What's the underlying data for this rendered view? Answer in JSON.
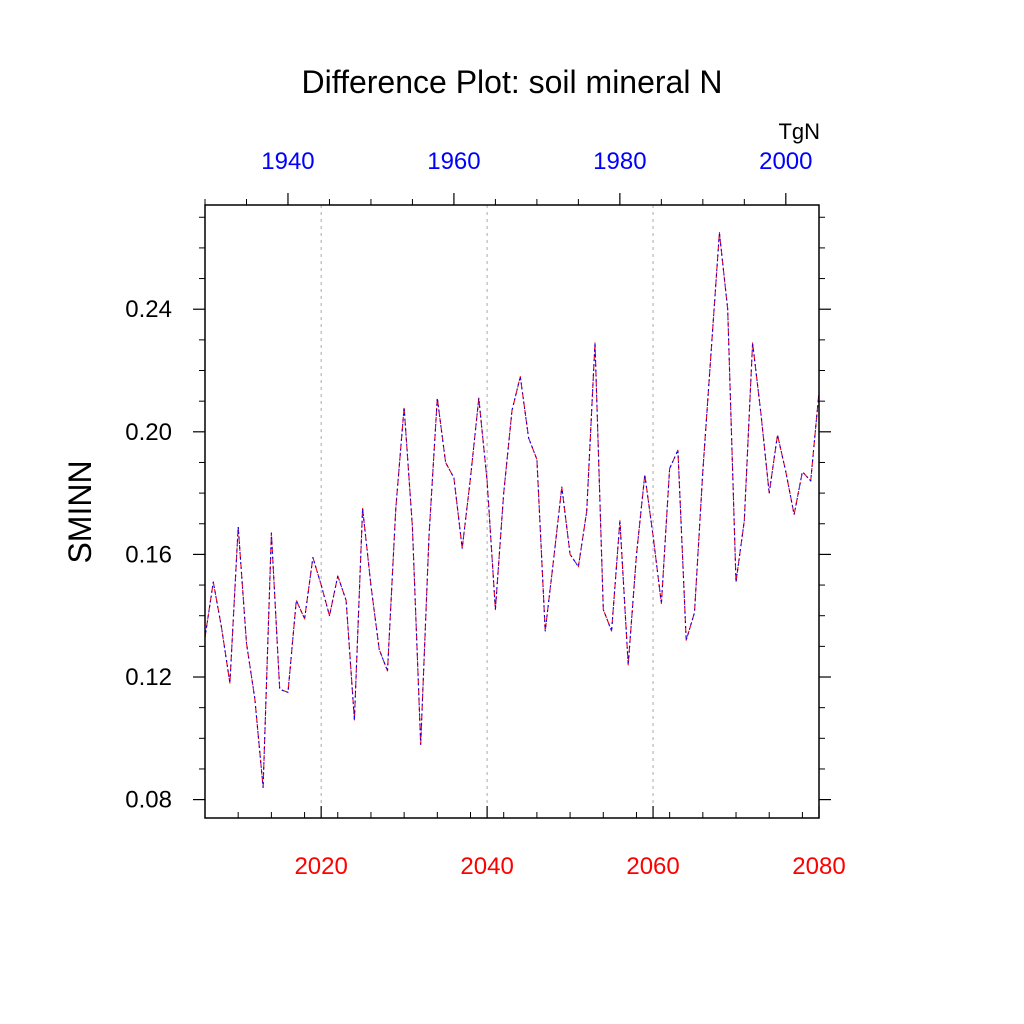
{
  "chart_data": {
    "type": "line",
    "title": "Difference Plot: soil mineral N",
    "ylabel": "SMINN",
    "units": "TgN",
    "grid": "vertical dashed lines at bottom-axis major ticks",
    "bottom_axis": {
      "label_color": "#ff0000",
      "range": [
        2006,
        2080
      ],
      "ticks": [
        2020,
        2040,
        2060,
        2080
      ],
      "tick_labels": [
        "2020",
        "2040",
        "2060",
        "2080"
      ],
      "minor_step": 4
    },
    "top_axis": {
      "label_color": "#0000ff",
      "range": [
        1930,
        2004
      ],
      "ticks": [
        1940,
        1960,
        1980,
        2000
      ],
      "tick_labels": [
        "1940",
        "1960",
        "1980",
        "2000"
      ],
      "minor_step": 5
    },
    "y_axis": {
      "range": [
        0.074,
        0.274
      ],
      "ticks": [
        0.08,
        0.12,
        0.16,
        0.2,
        0.24
      ],
      "tick_labels": [
        "0.08",
        "0.12",
        "0.16",
        "0.20",
        "0.24"
      ],
      "minor_step": 0.01
    },
    "x": [
      2006,
      2007,
      2008,
      2009,
      2010,
      2011,
      2012,
      2013,
      2014,
      2015,
      2016,
      2017,
      2018,
      2019,
      2020,
      2021,
      2022,
      2023,
      2024,
      2025,
      2026,
      2027,
      2028,
      2029,
      2030,
      2031,
      2032,
      2033,
      2034,
      2035,
      2036,
      2037,
      2038,
      2039,
      2040,
      2041,
      2042,
      2043,
      2044,
      2045,
      2046,
      2047,
      2048,
      2049,
      2050,
      2051,
      2052,
      2053,
      2054,
      2055,
      2056,
      2057,
      2058,
      2059,
      2060,
      2061,
      2062,
      2063,
      2064,
      2065,
      2066,
      2067,
      2068,
      2069,
      2070,
      2071,
      2072,
      2073,
      2074,
      2075,
      2076,
      2077,
      2078,
      2079,
      2080
    ],
    "series": [
      {
        "color": "#ff0000",
        "dash": "dashed",
        "values": [
          0.133,
          0.151,
          0.136,
          0.118,
          0.169,
          0.131,
          0.113,
          0.084,
          0.167,
          0.116,
          0.115,
          0.145,
          0.139,
          0.159,
          0.15,
          0.14,
          0.153,
          0.145,
          0.106,
          0.175,
          0.15,
          0.129,
          0.122,
          0.175,
          0.208,
          0.169,
          0.098,
          0.166,
          0.211,
          0.19,
          0.185,
          0.162,
          0.185,
          0.211,
          0.184,
          0.142,
          0.18,
          0.207,
          0.218,
          0.198,
          0.191,
          0.135,
          0.158,
          0.182,
          0.16,
          0.156,
          0.174,
          0.229,
          0.142,
          0.135,
          0.171,
          0.124,
          0.16,
          0.186,
          0.166,
          0.144,
          0.188,
          0.194,
          0.132,
          0.141,
          0.187,
          0.226,
          0.265,
          0.24,
          0.151,
          0.171,
          0.229,
          0.206,
          0.18,
          0.199,
          0.187,
          0.173,
          0.187,
          0.184,
          0.213
        ]
      },
      {
        "color": "#0000ff",
        "dash": "dotted",
        "values": [
          0.133,
          0.151,
          0.136,
          0.118,
          0.169,
          0.131,
          0.113,
          0.084,
          0.167,
          0.116,
          0.115,
          0.145,
          0.139,
          0.159,
          0.15,
          0.14,
          0.153,
          0.145,
          0.106,
          0.175,
          0.15,
          0.129,
          0.122,
          0.175,
          0.208,
          0.169,
          0.098,
          0.166,
          0.211,
          0.19,
          0.185,
          0.162,
          0.185,
          0.211,
          0.184,
          0.142,
          0.18,
          0.207,
          0.218,
          0.198,
          0.191,
          0.135,
          0.158,
          0.182,
          0.16,
          0.156,
          0.174,
          0.229,
          0.142,
          0.135,
          0.171,
          0.124,
          0.16,
          0.186,
          0.166,
          0.144,
          0.188,
          0.194,
          0.132,
          0.141,
          0.187,
          0.226,
          0.265,
          0.24,
          0.151,
          0.171,
          0.229,
          0.206,
          0.18,
          0.199,
          0.187,
          0.173,
          0.187,
          0.184,
          0.213
        ]
      }
    ]
  }
}
